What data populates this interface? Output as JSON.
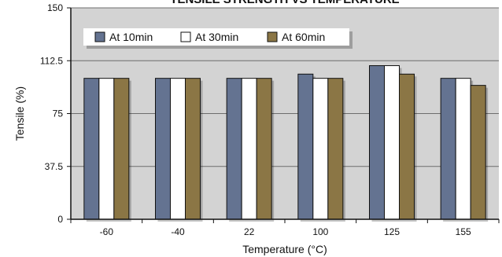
{
  "chart_data": {
    "type": "bar",
    "title": "TENSILE STRENGTH VS TEMPERATURE",
    "xlabel": "Temperature (°C)",
    "ylabel": "Tensile (%)",
    "categories": [
      "-60",
      "-40",
      "22",
      "100",
      "125",
      "155"
    ],
    "ylim": [
      0,
      150
    ],
    "yticks": [
      "0",
      "37.5",
      "75",
      "112.5",
      "150"
    ],
    "grid": true,
    "legend_position": "top-left",
    "series": [
      {
        "name": "At 10min",
        "color": "#647391",
        "values": [
          100,
          100,
          100,
          103,
          109,
          100
        ]
      },
      {
        "name": "At 30min",
        "color": "#ffffff",
        "values": [
          100,
          100,
          100,
          100,
          109,
          100
        ]
      },
      {
        "name": "At 60min",
        "color": "#8b7645",
        "values": [
          100,
          100,
          100,
          100,
          103,
          95
        ]
      }
    ],
    "plot_background": "#d3d3d3"
  }
}
